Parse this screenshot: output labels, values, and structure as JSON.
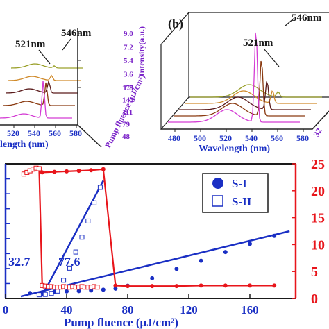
{
  "colors": {
    "blue": "#1a2fc4",
    "red": "#e8151b",
    "violet": "#7a22c8",
    "axis": "#1a1a1a",
    "spectra": [
      "#d43cd4",
      "#8a3a10",
      "#5a1a1a",
      "#d08a2a",
      "#9aa02a",
      "#c02a10"
    ]
  },
  "panel_a": {
    "peak1": "521nm",
    "peak2": "546nm",
    "xlabel": "length (nm)",
    "xticks": [
      "520",
      "540",
      "560",
      "580"
    ],
    "zlabel": "Intensity(a.u.)",
    "zticks": [
      "9.0",
      "7.2",
      "5.4",
      "3.6",
      "1.8"
    ],
    "fluence_label": "Pump fluence (μJ/cm²)",
    "fluence_ticks": [
      "175",
      "143",
      "111",
      "79",
      "48"
    ]
  },
  "panel_b": {
    "tag": "(b)",
    "peak1": "521nm",
    "peak2": "546nm",
    "xlabel": "Wavelength (nm)",
    "xticks": [
      "480",
      "500",
      "520",
      "540",
      "560",
      "580"
    ],
    "fluence_tick_partial": "32"
  },
  "chart_data": [
    {
      "type": "line",
      "panel": "a (spectra, partially cropped)",
      "series": [
        {
          "fluence": 48,
          "peak_546_height": 0.05
        },
        {
          "fluence": 79,
          "peak_546_height": 0.12
        },
        {
          "fluence": 111,
          "peak_546_height": 0.28
        },
        {
          "fluence": 143,
          "peak_546_height": 0.55
        },
        {
          "fluence": 175,
          "peak_546_height": 0.9
        }
      ]
    },
    {
      "type": "scatter",
      "title": "",
      "xlabel": "Pump fluence (μJ/cm²)",
      "xlim": [
        0,
        190
      ],
      "xticks": [
        0,
        40,
        80,
        120,
        160
      ],
      "ylabel_right": "",
      "ylim_right": [
        0,
        25
      ],
      "yticks_right": [
        0,
        5,
        10,
        15,
        20,
        25
      ],
      "legend": [
        "S-I",
        "S-II"
      ],
      "legend_position": "top-right",
      "annotations": [
        "32.7",
        "77.6"
      ],
      "series": [
        {
          "name": "S-I",
          "marker": "filled circle",
          "color": "#1a2fc4",
          "axis": "left",
          "x": [
            16,
            24,
            32,
            40,
            48,
            56,
            64,
            72,
            80,
            96,
            112,
            128,
            144,
            160,
            176
          ],
          "y": [
            0.8,
            0.9,
            1.0,
            1.05,
            1.1,
            1.2,
            1.3,
            1.45,
            1.9,
            3.0,
            4.4,
            5.6,
            6.9,
            8.1,
            9.3
          ]
        },
        {
          "name": "S-II",
          "marker": "open square",
          "color": "#1a2fc4",
          "axis": "left",
          "x": [
            22,
            26,
            30,
            34,
            38,
            42,
            46,
            50,
            54,
            58,
            62
          ],
          "y": [
            0.55,
            0.6,
            0.75,
            1.1,
            2.7,
            4.5,
            6.9,
            9.1,
            11.5,
            14.2,
            16.5
          ]
        },
        {
          "name": "",
          "marker": "open square",
          "color": "#e8151b",
          "axis": "right",
          "x": [
            12,
            14,
            16,
            18,
            20,
            22,
            24,
            26,
            28,
            30,
            32,
            34,
            36,
            38,
            40,
            42,
            44,
            46,
            48,
            50,
            52,
            54,
            56,
            58,
            60
          ],
          "y": [
            23.1,
            23.4,
            23.7,
            24.0,
            24.2,
            24.1,
            2.4,
            2.3,
            2.2,
            2.2,
            2.1,
            2.1,
            2.1,
            2.2,
            2.1,
            2.1,
            2.2,
            2.1,
            2.1,
            2.2,
            2.1,
            2.1,
            2.1,
            2.2,
            2.1
          ]
        },
        {
          "name": "",
          "marker": "filled circle",
          "color": "#e8151b",
          "axis": "right",
          "x": [
            24,
            32,
            40,
            48,
            56,
            64,
            72,
            80,
            96,
            112,
            128,
            144,
            160,
            176
          ],
          "y": [
            23.4,
            23.5,
            23.6,
            23.7,
            23.8,
            24.0,
            2.4,
            2.3,
            2.3,
            2.3,
            2.4,
            2.4,
            2.4,
            2.4
          ]
        },
        {
          "name": "",
          "type": "line",
          "color": "#1a2fc4",
          "x": [
            24,
            64
          ],
          "y": [
            0.4,
            17.5
          ]
        },
        {
          "name": "",
          "type": "line",
          "color": "#1a2fc4",
          "x": [
            10,
            186
          ],
          "y": [
            0.3,
            10.0
          ]
        }
      ]
    }
  ]
}
